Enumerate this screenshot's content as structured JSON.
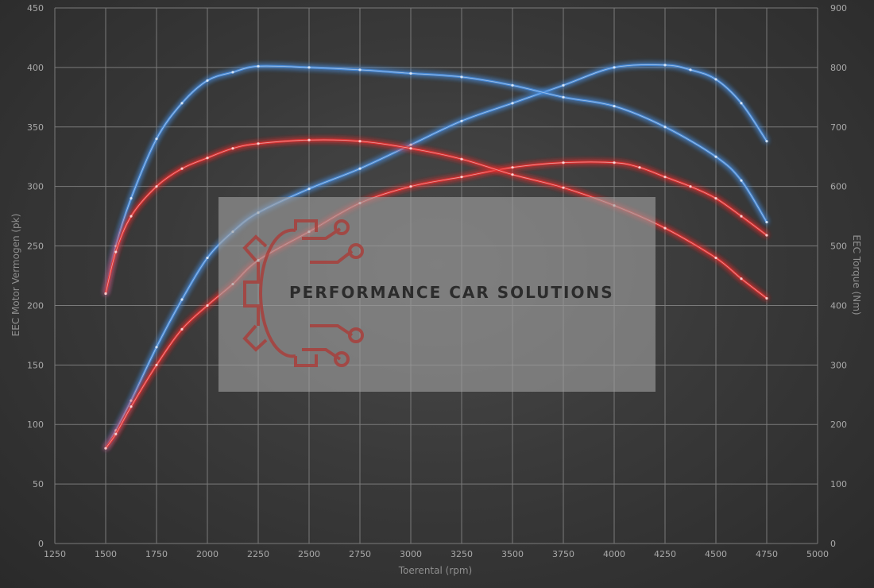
{
  "chart_data": {
    "type": "line",
    "xlabel": "Toerental (rpm)",
    "ylabel_left": "EEC Motor Vermogen (pk)",
    "ylabel_right": "EEC Torque (Nm)",
    "xlim": [
      1250,
      5000
    ],
    "ylim_left": [
      0,
      450
    ],
    "ylim_right": [
      0,
      900
    ],
    "x_ticks": [
      1250,
      1500,
      1750,
      2000,
      2250,
      2500,
      2750,
      3000,
      3250,
      3500,
      3750,
      4000,
      4250,
      4500,
      4750,
      5000
    ],
    "y_ticks_left": [
      0,
      50,
      100,
      150,
      200,
      250,
      300,
      350,
      400,
      450
    ],
    "y_ticks_right": [
      0,
      100,
      200,
      300,
      400,
      500,
      600,
      700,
      800,
      900
    ],
    "grid": true,
    "colors": {
      "tuned": "#4a8fe0",
      "stock": "#e63030"
    },
    "series": [
      {
        "axis": "left",
        "color_key": "tuned",
        "x": [
          1500,
          1550,
          1625,
          1750,
          1875,
          2000,
          2125,
          2250,
          2500,
          2750,
          3000,
          3250,
          3500,
          3750,
          4000,
          4250,
          4375,
          4500,
          4625,
          4750
        ],
        "values": [
          80,
          95,
          120,
          165,
          205,
          240,
          262,
          278,
          298,
          315,
          335,
          355,
          370,
          385,
          400,
          402,
          398,
          390,
          370,
          338
        ]
      },
      {
        "axis": "right",
        "color_key": "tuned",
        "x": [
          1500,
          1550,
          1625,
          1750,
          1875,
          2000,
          2125,
          2250,
          2500,
          2750,
          3000,
          3250,
          3500,
          3750,
          4000,
          4250,
          4500,
          4625,
          4750
        ],
        "values": [
          420,
          500,
          580,
          680,
          740,
          778,
          792,
          802,
          800,
          796,
          790,
          784,
          770,
          750,
          735,
          700,
          650,
          610,
          540
        ]
      },
      {
        "axis": "left",
        "color_key": "stock",
        "x": [
          1500,
          1550,
          1625,
          1750,
          1875,
          2000,
          2125,
          2250,
          2500,
          2750,
          3000,
          3250,
          3500,
          3750,
          4000,
          4125,
          4250,
          4375,
          4500,
          4625,
          4750
        ],
        "values": [
          80,
          92,
          115,
          150,
          180,
          200,
          218,
          238,
          262,
          286,
          300,
          308,
          316,
          320,
          320,
          316,
          308,
          300,
          290,
          275,
          259
        ]
      },
      {
        "axis": "right",
        "color_key": "stock",
        "x": [
          1500,
          1550,
          1625,
          1750,
          1875,
          2000,
          2125,
          2250,
          2500,
          2750,
          3000,
          3250,
          3500,
          3750,
          4000,
          4250,
          4500,
          4625,
          4750
        ],
        "values": [
          420,
          490,
          550,
          600,
          630,
          648,
          664,
          672,
          678,
          676,
          664,
          646,
          620,
          598,
          568,
          530,
          480,
          445,
          412
        ]
      }
    ]
  },
  "watermark": {
    "text": "PERFORMANCE CAR SOLUTIONS",
    "logo_icon": "gear-circuit-logo-icon"
  }
}
